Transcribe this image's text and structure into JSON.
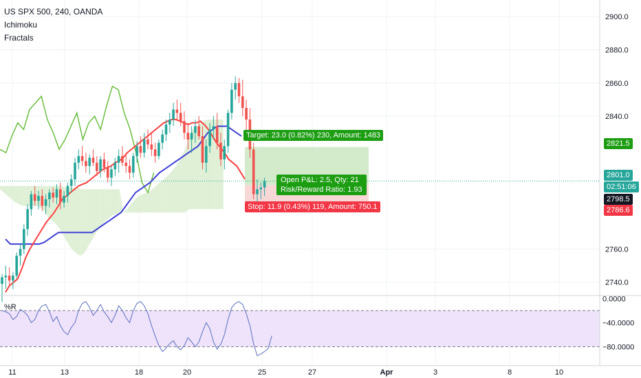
{
  "legend": {
    "symbol": "US SPX 500, 240, OANDA",
    "indicator1": "Ichimoku",
    "indicator2": "Fractals",
    "pane2_label": "%R"
  },
  "position": {
    "target_label": "Target: 23.0 (0.82%) 230, Amount: 1483",
    "open_label_1": "Open P&L: 2.5, Qty: 21",
    "open_label_2": "Risk/Reward Ratio: 1.93",
    "stop_label": "Stop: 11.9 (0.43%) 119, Amount: 750.1"
  },
  "price_tags": {
    "target": "2821.5",
    "current": "2801.0",
    "countdown": "02:51:06",
    "entry": "2798.5",
    "stop": "2786.6"
  },
  "colors": {
    "up": "#26a69a",
    "down": "#ef5350",
    "tenkan": "#ff4040",
    "kijun": "#3f3fd6",
    "chikou": "#6abe3f",
    "cloud_bull": "#dff0d6",
    "cloud_bear": "#fbd7d7",
    "target_zone": "#cde8c2",
    "stop_zone": "#f7d0d0",
    "target_tag": "#1c9d12",
    "stop_tag": "#f23645",
    "current_tag": "#26a69a",
    "wpr_line": "#5b6ebd",
    "wpr_band": "#efe3fb"
  },
  "chart_data": [
    {
      "type": "candlestick",
      "title": "US SPX 500, 240, OANDA",
      "x_ticks": [
        "11",
        "13",
        "18",
        "20",
        "25",
        "27",
        "Apr",
        "3",
        "8",
        "10"
      ],
      "y_ticks": [
        2900.0,
        2880.0,
        2860.0,
        2840.0,
        2760.0,
        2740.0
      ],
      "ylim": [
        2732,
        2910
      ],
      "price_tags": [
        2821.5,
        2801.0,
        2798.5,
        2786.6
      ],
      "candles": [
        [
          2739,
          2745,
          2728,
          2743
        ],
        [
          2743,
          2750,
          2736,
          2744
        ],
        [
          2744,
          2749,
          2738,
          2741
        ],
        [
          2741,
          2746,
          2736,
          2744
        ],
        [
          2744,
          2758,
          2742,
          2756
        ],
        [
          2756,
          2763,
          2750,
          2760
        ],
        [
          2760,
          2775,
          2757,
          2772
        ],
        [
          2772,
          2787,
          2768,
          2784
        ],
        [
          2784,
          2795,
          2780,
          2793
        ],
        [
          2793,
          2798,
          2786,
          2789
        ],
        [
          2789,
          2795,
          2784,
          2792
        ],
        [
          2792,
          2796,
          2783,
          2786
        ],
        [
          2786,
          2793,
          2781,
          2790
        ],
        [
          2790,
          2796,
          2785,
          2794
        ],
        [
          2794,
          2797,
          2788,
          2791
        ],
        [
          2791,
          2799,
          2787,
          2796
        ],
        [
          2796,
          2800,
          2784,
          2788
        ],
        [
          2788,
          2795,
          2785,
          2792
        ],
        [
          2792,
          2800,
          2788,
          2798
        ],
        [
          2798,
          2805,
          2794,
          2802
        ],
        [
          2802,
          2815,
          2798,
          2812
        ],
        [
          2812,
          2820,
          2808,
          2816
        ],
        [
          2816,
          2822,
          2810,
          2813
        ],
        [
          2813,
          2818,
          2806,
          2810
        ],
        [
          2810,
          2817,
          2805,
          2815
        ],
        [
          2815,
          2820,
          2810,
          2812
        ],
        [
          2812,
          2816,
          2804,
          2807
        ],
        [
          2807,
          2816,
          2803,
          2814
        ],
        [
          2814,
          2818,
          2806,
          2809
        ],
        [
          2809,
          2813,
          2800,
          2803
        ],
        [
          2803,
          2810,
          2798,
          2808
        ],
        [
          2808,
          2815,
          2804,
          2812
        ],
        [
          2812,
          2820,
          2806,
          2816
        ],
        [
          2816,
          2822,
          2810,
          2812
        ],
        [
          2812,
          2818,
          2806,
          2810
        ],
        [
          2810,
          2814,
          2802,
          2806
        ],
        [
          2806,
          2818,
          2803,
          2816
        ],
        [
          2816,
          2825,
          2812,
          2822
        ],
        [
          2822,
          2828,
          2815,
          2818
        ],
        [
          2818,
          2830,
          2815,
          2826
        ],
        [
          2826,
          2832,
          2820,
          2823
        ],
        [
          2823,
          2830,
          2816,
          2820
        ],
        [
          2820,
          2824,
          2812,
          2816
        ],
        [
          2816,
          2826,
          2814,
          2824
        ],
        [
          2824,
          2832,
          2820,
          2829
        ],
        [
          2829,
          2838,
          2825,
          2835
        ],
        [
          2835,
          2842,
          2830,
          2838
        ],
        [
          2838,
          2848,
          2834,
          2844
        ],
        [
          2844,
          2850,
          2838,
          2842
        ],
        [
          2842,
          2848,
          2834,
          2837
        ],
        [
          2837,
          2843,
          2826,
          2830
        ],
        [
          2830,
          2836,
          2820,
          2826
        ],
        [
          2826,
          2834,
          2818,
          2830
        ],
        [
          2830,
          2838,
          2824,
          2834
        ],
        [
          2834,
          2840,
          2826,
          2828
        ],
        [
          2828,
          2834,
          2808,
          2812
        ],
        [
          2812,
          2826,
          2806,
          2822
        ],
        [
          2822,
          2836,
          2818,
          2832
        ],
        [
          2832,
          2840,
          2826,
          2834
        ],
        [
          2834,
          2842,
          2820,
          2824
        ],
        [
          2824,
          2830,
          2810,
          2814
        ],
        [
          2814,
          2826,
          2808,
          2822
        ],
        [
          2822,
          2844,
          2818,
          2842
        ],
        [
          2842,
          2860,
          2838,
          2856
        ],
        [
          2856,
          2864,
          2850,
          2860
        ],
        [
          2860,
          2863,
          2848,
          2852
        ],
        [
          2852,
          2862,
          2840,
          2845
        ],
        [
          2845,
          2850,
          2830,
          2838
        ],
        [
          2838,
          2845,
          2815,
          2820
        ],
        [
          2820,
          2824,
          2790,
          2793
        ],
        [
          2793,
          2802,
          2788,
          2796
        ],
        [
          2796,
          2800,
          2790,
          2797
        ],
        [
          2797,
          2803,
          2792,
          2801
        ]
      ],
      "tenkan": [
        2734,
        2738,
        2740,
        2742,
        2748,
        2755,
        2760,
        2764,
        2768,
        2772,
        2776,
        2779,
        2782,
        2786,
        2790,
        2792,
        2794,
        2796,
        2798,
        2799,
        2800,
        2802,
        2804,
        2806,
        2808,
        2809,
        2810,
        2812,
        2813,
        2815,
        2818,
        2820,
        2822,
        2824,
        2826,
        2828,
        2830,
        2832,
        2834,
        2836,
        2837,
        2838,
        2838,
        2837,
        2836,
        2835,
        2836,
        2836,
        2837,
        2835,
        2832,
        2828,
        2824,
        2821,
        2818,
        2814,
        2812,
        2810,
        2806,
        2802
      ],
      "kijun": [
        2766,
        2763,
        2763,
        2763,
        2763,
        2763,
        2763,
        2763,
        2764,
        2766,
        2768,
        2770,
        2770,
        2770,
        2770,
        2770,
        2770,
        2770,
        2770,
        2772,
        2774,
        2776,
        2778,
        2780,
        2782,
        2786,
        2790,
        2794,
        2796,
        2798,
        2800,
        2803,
        2806,
        2808,
        2810,
        2812,
        2814,
        2816,
        2818,
        2820,
        2822,
        2826,
        2830,
        2832,
        2834,
        2834,
        2834,
        2832,
        2830,
        2828
      ],
      "chikou": [
        2820,
        2818,
        2828,
        2836,
        2832,
        2844,
        2848,
        2852,
        2838,
        2830,
        2820,
        2826,
        2834,
        2842,
        2826,
        2836,
        2840,
        2832,
        2846,
        2858,
        2856,
        2842,
        2832,
        2818,
        2800,
        2794,
        2806
      ],
      "cloud": [
        [
          2798,
          2796
        ],
        [
          2798,
          2794
        ],
        [
          2798,
          2792
        ],
        [
          2798,
          2790
        ],
        [
          2798,
          2788
        ],
        [
          2798,
          2787
        ],
        [
          2798,
          2786
        ],
        [
          2798,
          2786
        ],
        [
          2798,
          2786
        ],
        [
          2798,
          2786
        ],
        [
          2798,
          2786
        ],
        [
          2798,
          2784
        ],
        [
          2798,
          2781
        ],
        [
          2798,
          2778
        ],
        [
          2798,
          2776
        ],
        [
          2798,
          2774
        ],
        [
          2798,
          2770
        ],
        [
          2797,
          2766
        ],
        [
          2797,
          2762
        ],
        [
          2797,
          2759
        ],
        [
          2797,
          2757
        ],
        [
          2796,
          2756
        ],
        [
          2796,
          2758
        ],
        [
          2796,
          2762
        ],
        [
          2796,
          2766
        ],
        [
          2796,
          2770
        ],
        [
          2796,
          2773
        ],
        [
          2796,
          2776
        ],
        [
          2796,
          2778
        ],
        [
          2796,
          2780
        ],
        [
          2796,
          2781
        ],
        [
          2796,
          2782
        ],
        [
          2782,
          2782
        ],
        [
          2784,
          2782
        ],
        [
          2787,
          2782
        ],
        [
          2790,
          2782
        ],
        [
          2792,
          2782
        ],
        [
          2793,
          2782
        ],
        [
          2794,
          2782
        ],
        [
          2795,
          2782
        ],
        [
          2797,
          2782
        ],
        [
          2799,
          2782
        ],
        [
          2801,
          2782
        ],
        [
          2803,
          2782
        ],
        [
          2805,
          2782
        ],
        [
          2808,
          2782
        ],
        [
          2811,
          2782
        ],
        [
          2815,
          2782
        ],
        [
          2820,
          2782
        ],
        [
          2826,
          2784
        ],
        [
          2832,
          2784
        ],
        [
          2834,
          2784
        ],
        [
          2836,
          2784
        ],
        [
          2837,
          2784
        ],
        [
          2838,
          2784
        ],
        [
          2838,
          2784
        ],
        [
          2838,
          2784
        ],
        [
          2838,
          2784
        ],
        [
          2838,
          2784
        ]
      ],
      "position": {
        "entry": 2798.5,
        "target": 2821.5,
        "stop": 2786.6
      },
      "current_price": 2801.0
    },
    {
      "type": "line",
      "title": "%R",
      "y_ticks": [
        0.0,
        -40.0,
        -80.0
      ],
      "y_tick_labels": [
        "0.0000",
        "−40.0000",
        "−80.0000"
      ],
      "ylim": [
        -100,
        5
      ],
      "bands": [
        -20,
        -80
      ],
      "values": [
        -20,
        -22,
        -25,
        -35,
        -30,
        -18,
        -22,
        -28,
        -40,
        -35,
        -20,
        -12,
        -10,
        -22,
        -38,
        -30,
        -45,
        -55,
        -60,
        -48,
        -40,
        -20,
        -8,
        -5,
        -15,
        -28,
        -20,
        -10,
        -22,
        -30,
        -40,
        -28,
        -12,
        -20,
        -32,
        -40,
        -20,
        -8,
        -5,
        -12,
        -25,
        -45,
        -62,
        -78,
        -88,
        -82,
        -75,
        -70,
        -80,
        -85,
        -78,
        -65,
        -72,
        -80,
        -72,
        -55,
        -40,
        -50,
        -72,
        -84,
        -76,
        -60,
        -35,
        -15,
        -8,
        -5,
        -10,
        -25,
        -45,
        -75,
        -95,
        -92,
        -88,
        -83,
        -62
      ]
    }
  ]
}
